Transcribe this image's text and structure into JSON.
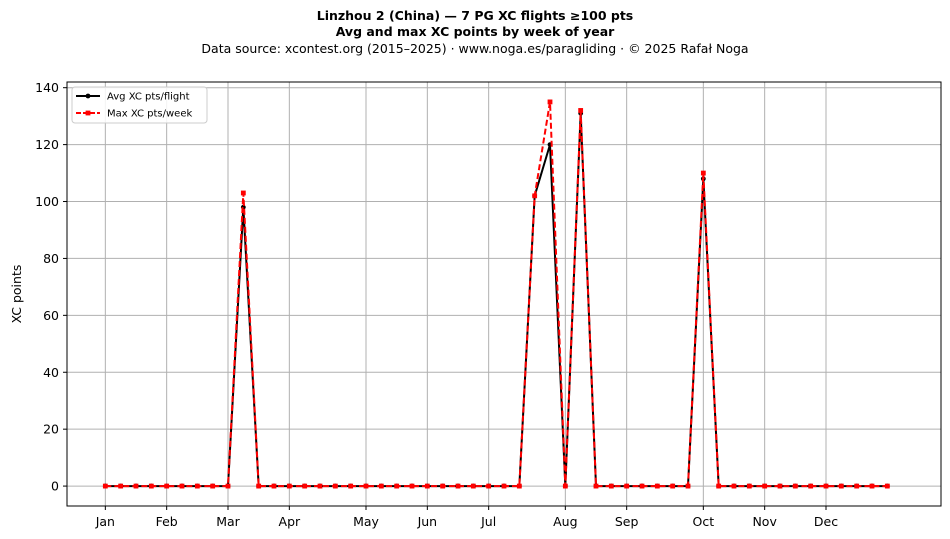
{
  "title": {
    "line1": "Linzhou 2 (China)  —  7 PG XC flights ≥100 pts",
    "line2": "Avg and max XC points by week of year",
    "line3": "Data source: xcontest.org (2015–2025)  ·  www.noga.es/paragliding  ·  © 2025 Rafał Noga"
  },
  "chart_data": {
    "type": "line",
    "title": "Avg and max XC points by week of year",
    "xlabel": "",
    "ylabel": "XC points",
    "xlim": [
      -2.5,
      54.5
    ],
    "ylim": [
      -7,
      142
    ],
    "grid": true,
    "legend_position": "top-left",
    "x_ticks": [
      {
        "label": "Jan",
        "week": 0
      },
      {
        "label": "Feb",
        "week": 4
      },
      {
        "label": "Mar",
        "week": 8
      },
      {
        "label": "Apr",
        "week": 12
      },
      {
        "label": "May",
        "week": 17
      },
      {
        "label": "Jun",
        "week": 21
      },
      {
        "label": "Jul",
        "week": 25
      },
      {
        "label": "Aug",
        "week": 30
      },
      {
        "label": "Sep",
        "week": 34
      },
      {
        "label": "Oct",
        "week": 39
      },
      {
        "label": "Nov",
        "week": 43
      },
      {
        "label": "Dec",
        "week": 47
      }
    ],
    "y_ticks": [
      0,
      20,
      40,
      60,
      80,
      100,
      120,
      140
    ],
    "x": [
      0,
      1,
      2,
      3,
      4,
      5,
      6,
      7,
      8,
      9,
      10,
      11,
      12,
      13,
      14,
      15,
      16,
      17,
      18,
      19,
      20,
      21,
      22,
      23,
      24,
      25,
      26,
      27,
      28,
      29,
      30,
      31,
      32,
      33,
      34,
      35,
      36,
      37,
      38,
      39,
      40,
      41,
      42,
      43,
      44,
      45,
      46,
      47,
      48,
      49,
      50,
      51
    ],
    "series": [
      {
        "name": "Avg XC pts/flight",
        "color": "#000000",
        "style": "solid",
        "marker": "circle",
        "values": [
          0,
          0,
          0,
          0,
          0,
          0,
          0,
          0,
          0,
          98,
          0,
          0,
          0,
          0,
          0,
          0,
          0,
          0,
          0,
          0,
          0,
          0,
          0,
          0,
          0,
          0,
          0,
          0,
          102,
          120,
          0,
          131,
          0,
          0,
          0,
          0,
          0,
          0,
          0,
          108,
          0,
          0,
          0,
          0,
          0,
          0,
          0,
          0,
          0,
          0,
          0,
          0
        ]
      },
      {
        "name": "Max XC pts/week",
        "color": "#ff0000",
        "style": "dashed",
        "marker": "square",
        "values": [
          0,
          0,
          0,
          0,
          0,
          0,
          0,
          0,
          0,
          103,
          0,
          0,
          0,
          0,
          0,
          0,
          0,
          0,
          0,
          0,
          0,
          0,
          0,
          0,
          0,
          0,
          0,
          0,
          102,
          135,
          0,
          132,
          0,
          0,
          0,
          0,
          0,
          0,
          0,
          110,
          0,
          0,
          0,
          0,
          0,
          0,
          0,
          0,
          0,
          0,
          0,
          0
        ]
      }
    ]
  }
}
